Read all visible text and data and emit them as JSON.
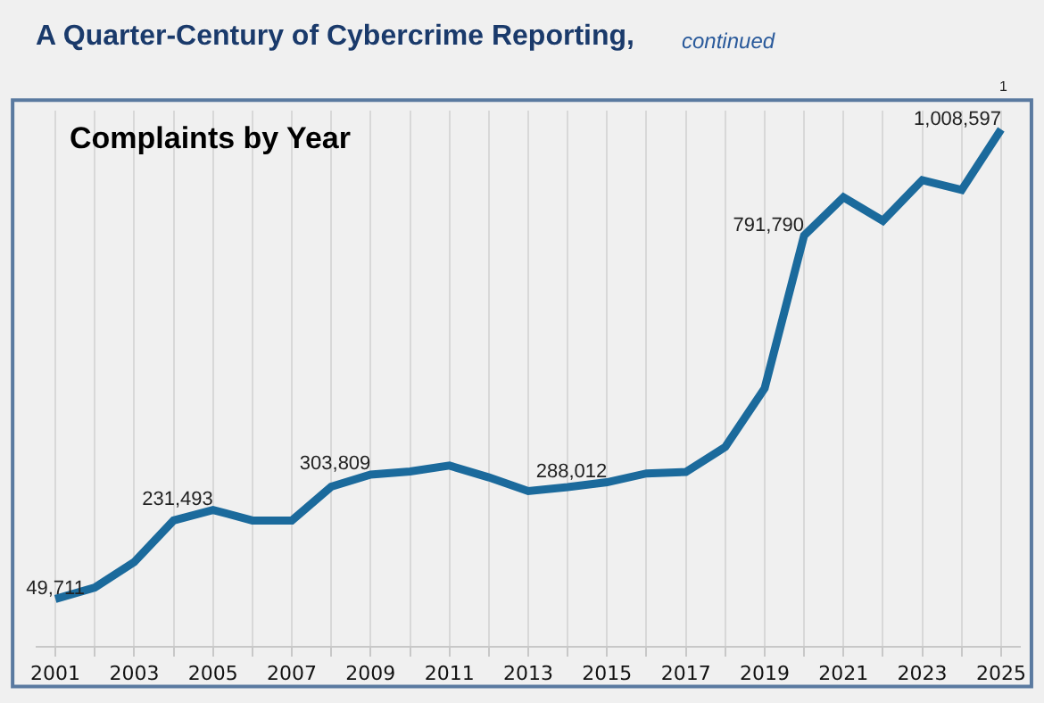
{
  "chart_data": {
    "type": "line",
    "title": "A Quarter-Century of Cybercrime Reporting,",
    "subtitle": "continued",
    "annotations": [
      "Complaints by Year",
      "1"
    ],
    "x": [
      2001,
      2002,
      2003,
      2004,
      2005,
      2006,
      2007,
      2008,
      2009,
      2010,
      2011,
      2012,
      2013,
      2014,
      2015,
      2016,
      2017,
      2018,
      2019,
      2020,
      2021,
      2022,
      2023,
      2024,
      2025
    ],
    "xlim": [
      2000.5,
      2025.5
    ],
    "xticks": [
      2001,
      {
        "value": 2002,
        "label": null
      },
      2003,
      {
        "value": 2004,
        "label": null
      },
      2005,
      {
        "value": 2006,
        "label": null
      },
      2007,
      {
        "value": 2008,
        "label": null
      },
      2009,
      {
        "value": 2010,
        "label": null
      },
      2011,
      {
        "value": 2012,
        "label": null
      },
      2013,
      {
        "value": 2014,
        "label": null
      },
      2015,
      {
        "value": 2016,
        "label": null
      },
      2017,
      {
        "value": 2018,
        "label": null
      },
      2019,
      {
        "value": 2020,
        "label": null
      },
      2021,
      {
        "value": 2022,
        "label": null
      },
      2023,
      {
        "value": 2024,
        "label": null
      },
      2025
    ],
    "series": [
      {
        "color": "#1b6a9c",
        "values": [
          49711,
          73000,
          125000,
          210000,
          231493,
          210000,
          210000,
          279000,
          303809,
          310000,
          322000,
          298000,
          270000,
          278000,
          288012,
          306000,
          309000,
          360000,
          480000,
          791790,
          870000,
          822000,
          905000,
          885000,
          1008597
        ],
        "value_labels": [
          "49,711",
          null,
          null,
          null,
          "231,493",
          null,
          null,
          null,
          "303,809",
          null,
          null,
          null,
          null,
          null,
          "288,012",
          null,
          null,
          null,
          null,
          "791,790",
          null,
          null,
          null,
          null,
          "1,008,597"
        ]
      }
    ],
    "grid": "x",
    "marker": "none",
    "line_style": "solid"
  }
}
